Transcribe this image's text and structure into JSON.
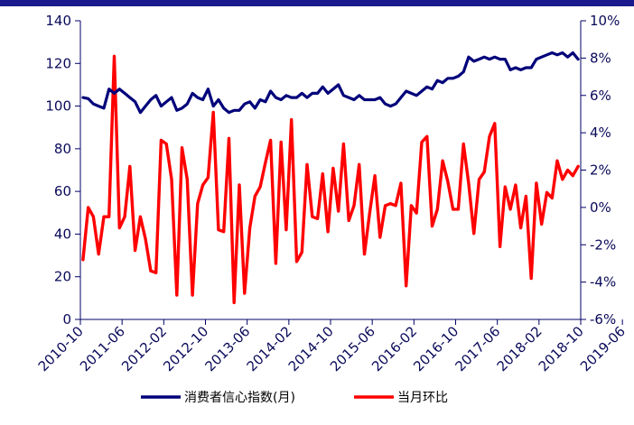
{
  "colors": {
    "index": "#00007a",
    "mom": "#ff0000",
    "axis": "#000066",
    "topBar": "#1a1a8c"
  },
  "chart_data": {
    "type": "line",
    "title": "",
    "xlabel": "",
    "ylabel_left": "",
    "ylabel_right": "",
    "ylim_left": [
      0,
      140
    ],
    "yticks_left": [
      "0",
      "20",
      "40",
      "60",
      "80",
      "100",
      "120",
      "140"
    ],
    "ylim_right": [
      -6,
      10
    ],
    "yticks_right": [
      "-6%",
      "-4%",
      "-2%",
      "0%",
      "2%",
      "4%",
      "6%",
      "8%",
      "10%"
    ],
    "x_tick_labels": [
      "2010-10",
      "2011-06",
      "2012-02",
      "2012-10",
      "2013-06",
      "2014-02",
      "2014-10",
      "2015-06",
      "2016-02",
      "2016-10",
      "2017-06",
      "2018-02",
      "2018-10",
      "2019-06"
    ],
    "x_tick_every": 8,
    "grid": false,
    "legend_position": "bottom",
    "series": [
      {
        "name": "消费者信心指数(月)",
        "axis": "left",
        "values": [
          104,
          103.5,
          101,
          100,
          99,
          108,
          106,
          108,
          106,
          104,
          102,
          97,
          100,
          103,
          105,
          100,
          102,
          104,
          98,
          99,
          101,
          106,
          104,
          103,
          108,
          100,
          103,
          99,
          97,
          98,
          98,
          101,
          102,
          99,
          103,
          102,
          107,
          104,
          103,
          105,
          104,
          104,
          106,
          104,
          106,
          106,
          109,
          106,
          108,
          110,
          105,
          104,
          103,
          105,
          103,
          103,
          103,
          104,
          101,
          100,
          101,
          104,
          107,
          106,
          105,
          107,
          109,
          108,
          112,
          111,
          113,
          113,
          114,
          116,
          123,
          121,
          122,
          123,
          122,
          123,
          122,
          122,
          117,
          118,
          117,
          118,
          118,
          122,
          123,
          124,
          125,
          124,
          125,
          123,
          125,
          122
        ]
      },
      {
        "name": "当月环比",
        "axis": "right",
        "values": [
          -2.8,
          0,
          -0.5,
          -2.5,
          -0.5,
          -0.5,
          8.1,
          -1.1,
          -0.5,
          2.2,
          -2.3,
          -0.5,
          -1.7,
          -3.4,
          -3.5,
          3.6,
          3.4,
          1.5,
          -4.7,
          3.2,
          1.5,
          -4.7,
          0.2,
          1.2,
          1.6,
          5.1,
          -1.2,
          -1.3,
          3.7,
          -5.1,
          1.2,
          -4.6,
          -1.1,
          0.6,
          1.1,
          2.4,
          3.6,
          -3.0,
          3.5,
          -1.2,
          4.7,
          -2.9,
          -2.4,
          2.3,
          -0.5,
          -0.6,
          1.8,
          -1.3,
          2.1,
          -0.2,
          3.4,
          -0.7,
          0.1,
          2.3,
          -2.5,
          -0.3,
          1.7,
          -1.6,
          0.1,
          0.2,
          0.1,
          1.3,
          -4.2,
          0.1,
          -0.3,
          3.5,
          3.8,
          -1.0,
          -0.1,
          2.5,
          1.4,
          -0.1,
          -0.1,
          3.4,
          1.3,
          -1.4,
          1.5,
          1.9,
          3.8,
          4.5,
          -2.1,
          1.1,
          -0.1,
          1.2,
          -1.1,
          0.6,
          -3.8,
          1.3,
          -0.9,
          0.8,
          0.5,
          2.5,
          1.5,
          2.0,
          1.7,
          2.2
        ]
      }
    ]
  }
}
